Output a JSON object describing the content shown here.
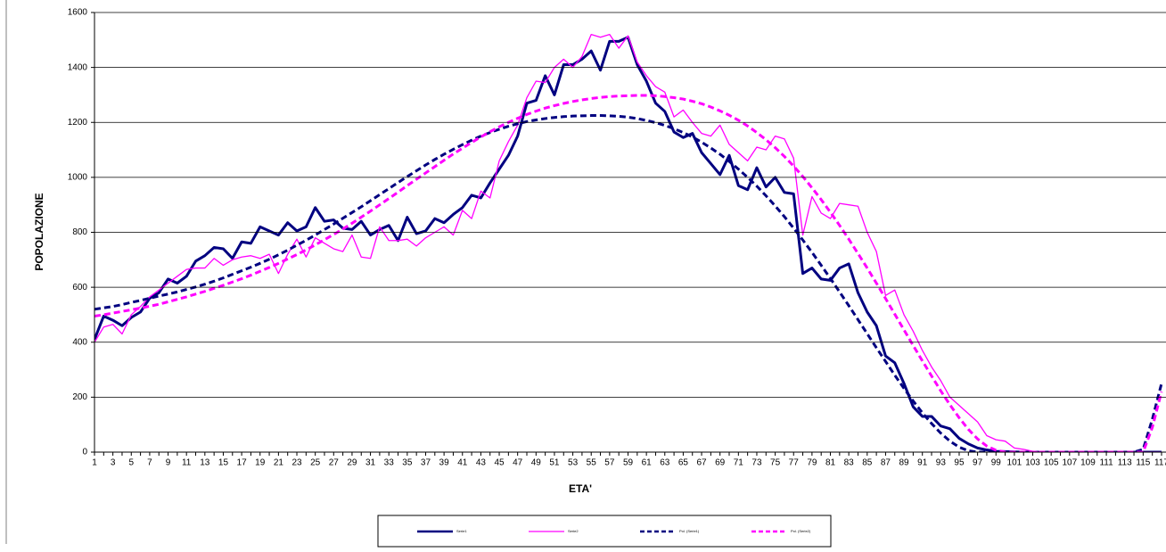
{
  "chart_data": {
    "type": "line",
    "y_axis_label": "POPOLAZIONE",
    "x_axis_label": "ETA'",
    "categories": [
      "1",
      null,
      "3",
      null,
      "5",
      null,
      "7",
      null,
      "9",
      null,
      "11",
      null,
      "13",
      null,
      "15",
      null,
      "17",
      null,
      "19",
      null,
      "21",
      null,
      "23",
      null,
      "25",
      null,
      "27",
      null,
      "29",
      null,
      "31",
      null,
      "33",
      null,
      "35",
      null,
      "37",
      null,
      "39",
      null,
      "41",
      null,
      "43",
      null,
      "45",
      null,
      "47",
      null,
      "49",
      null,
      "51",
      null,
      "53",
      null,
      "55",
      null,
      "57",
      null,
      "59",
      null,
      "61",
      null,
      "63",
      null,
      "65",
      null,
      "67",
      null,
      "69",
      null,
      "71",
      null,
      "73",
      null,
      "75",
      null,
      "77",
      null,
      "79",
      null,
      "81",
      null,
      "83",
      null,
      "85",
      null,
      "87",
      null,
      "89",
      null,
      "91",
      null,
      "93",
      null,
      "95",
      null,
      "97",
      null,
      "99",
      null,
      "101",
      null,
      "103",
      null,
      "105",
      null,
      "107",
      null,
      "109",
      null,
      "111",
      null,
      "113",
      null,
      "115",
      null,
      "117"
    ],
    "ylim": [
      0,
      1600
    ],
    "yticks": [
      0,
      200,
      400,
      600,
      800,
      1000,
      1200,
      1400,
      1600
    ],
    "grid": true,
    "series": [
      {
        "name": "Serie1",
        "color": "#000080",
        "width": 3,
        "dashed": false,
        "values": [
          410,
          495,
          480,
          460,
          490,
          510,
          560,
          580,
          630,
          615,
          640,
          695,
          715,
          745,
          740,
          705,
          765,
          760,
          820,
          805,
          790,
          835,
          805,
          820,
          890,
          840,
          845,
          815,
          810,
          840,
          790,
          810,
          825,
          770,
          855,
          795,
          805,
          850,
          835,
          865,
          890,
          935,
          925,
          980,
          1030,
          1080,
          1150,
          1270,
          1280,
          1370,
          1300,
          1410,
          1410,
          1430,
          1460,
          1390,
          1495,
          1495,
          1510,
          1410,
          1350,
          1270,
          1240,
          1165,
          1145,
          1160,
          1090,
          1050,
          1010,
          1080,
          970,
          955,
          1035,
          965,
          1000,
          945,
          940,
          650,
          670,
          630,
          625,
          670,
          685,
          580,
          510,
          460,
          350,
          325,
          250,
          165,
          130,
          130,
          95,
          85,
          50,
          30,
          15,
          8,
          3,
          2,
          1,
          0,
          0,
          0,
          0,
          0,
          0,
          0,
          0,
          0,
          0,
          0,
          0,
          0,
          0,
          0,
          0
        ]
      },
      {
        "name": "Serie2",
        "color": "#ff00ff",
        "width": 1.3,
        "dashed": false,
        "values": [
          400,
          455,
          465,
          430,
          500,
          530,
          565,
          590,
          615,
          640,
          665,
          670,
          670,
          705,
          680,
          700,
          710,
          715,
          705,
          720,
          650,
          720,
          775,
          710,
          780,
          760,
          740,
          730,
          790,
          710,
          705,
          820,
          770,
          770,
          775,
          750,
          780,
          800,
          820,
          790,
          880,
          850,
          950,
          925,
          1060,
          1130,
          1190,
          1290,
          1350,
          1345,
          1400,
          1430,
          1400,
          1440,
          1520,
          1510,
          1520,
          1470,
          1515,
          1420,
          1370,
          1330,
          1310,
          1220,
          1245,
          1200,
          1160,
          1150,
          1190,
          1120,
          1090,
          1060,
          1110,
          1100,
          1150,
          1140,
          1070,
          790,
          930,
          870,
          850,
          905,
          900,
          895,
          800,
          730,
          570,
          590,
          500,
          440,
          370,
          310,
          260,
          200,
          170,
          140,
          110,
          60,
          45,
          40,
          15,
          10,
          3,
          0,
          0,
          0,
          0,
          0,
          0,
          0,
          0,
          0,
          0,
          0,
          0,
          0,
          0
        ]
      },
      {
        "name": "Pol. (Serie1)",
        "color": "#000080",
        "width": 3,
        "dashed": true,
        "values": [
          520,
          525,
          530,
          537,
          545,
          552,
          560,
          568,
          575,
          583,
          592,
          601,
          611,
          622,
          634,
          647,
          660,
          673,
          687,
          702,
          718,
          735,
          753,
          771,
          790,
          810,
          830,
          851,
          872,
          893,
          915,
          937,
          959,
          981,
          1003,
          1024,
          1045,
          1065,
          1084,
          1102,
          1119,
          1135,
          1150,
          1163,
          1175,
          1186,
          1195,
          1203,
          1209,
          1214,
          1218,
          1221,
          1223,
          1224,
          1225,
          1225,
          1224,
          1222,
          1219,
          1214,
          1207,
          1199,
          1189,
          1177,
          1163,
          1147,
          1128,
          1107,
          1084,
          1058,
          1030,
          1000,
          968,
          933,
          896,
          857,
          815,
          772,
          727,
          680,
          632,
          583,
          533,
          482,
          431,
          380,
          330,
          280,
          232,
          186,
          143,
          104,
          69,
          40,
          18,
          5,
          0,
          0,
          0,
          0,
          0,
          0,
          0,
          0,
          0,
          0,
          0,
          0,
          0,
          0,
          0,
          0,
          0,
          0,
          10,
          120,
          250
        ]
      },
      {
        "name": "Pol. (Serie2)",
        "color": "#ff00ff",
        "width": 3,
        "dashed": true,
        "values": [
          495,
          500,
          506,
          512,
          518,
          524,
          531,
          538,
          547,
          556,
          565,
          575,
          585,
          596,
          607,
          619,
          631,
          644,
          658,
          672,
          687,
          703,
          719,
          736,
          754,
          773,
          792,
          812,
          833,
          855,
          877,
          900,
          923,
          946,
          970,
          993,
          1016,
          1039,
          1062,
          1085,
          1106,
          1127,
          1147,
          1166,
          1184,
          1200,
          1215,
          1229,
          1241,
          1252,
          1261,
          1269,
          1276,
          1282,
          1287,
          1291,
          1294,
          1296,
          1297,
          1298,
          1298,
          1297,
          1294,
          1290,
          1285,
          1277,
          1268,
          1256,
          1242,
          1226,
          1208,
          1187,
          1163,
          1137,
          1108,
          1076,
          1041,
          1003,
          962,
          919,
          873,
          825,
          775,
          723,
          670,
          615,
          559,
          502,
          445,
          388,
          332,
          277,
          223,
          172,
          125,
          83,
          48,
          22,
          7,
          0,
          0,
          0,
          0,
          0,
          0,
          0,
          0,
          0,
          0,
          0,
          0,
          0,
          0,
          0,
          0,
          90,
          220
        ]
      }
    ]
  }
}
